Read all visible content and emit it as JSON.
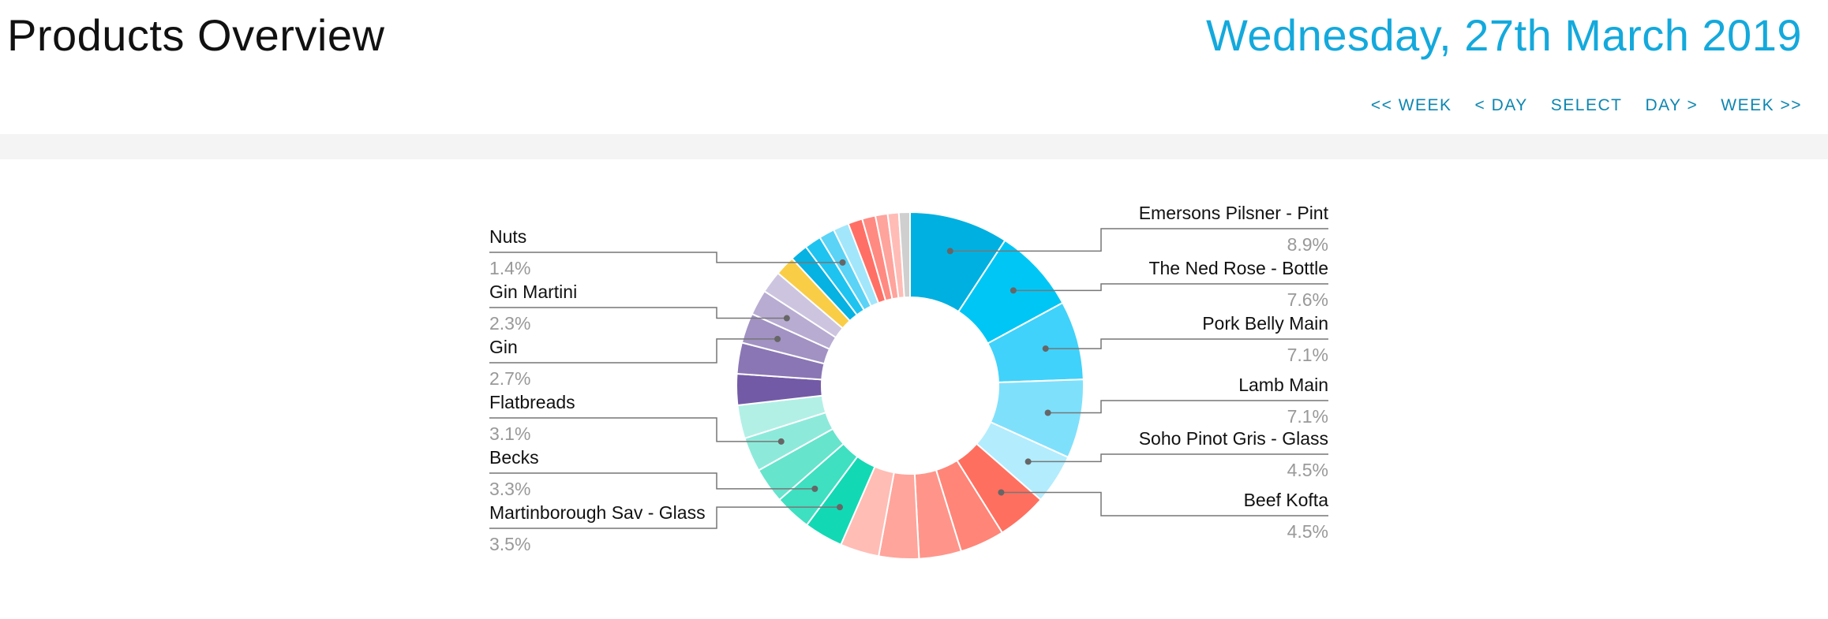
{
  "header": {
    "title": "Products Overview",
    "date": "Wednesday, 27th March 2019"
  },
  "nav": {
    "prev_week": "<< WEEK",
    "prev_day": "< DAY",
    "select": "SELECT",
    "next_day": "DAY >",
    "next_week": "WEEK >>"
  },
  "chart_data": {
    "type": "pie",
    "donut": true,
    "slices": [
      {
        "label": "Emersons Pilsner - Pint",
        "value": 8.9,
        "color": "#00b0e0",
        "labeled": true
      },
      {
        "label": "The Ned Rose - Bottle",
        "value": 7.6,
        "color": "#00c6f5",
        "labeled": true
      },
      {
        "label": "Pork Belly Main",
        "value": 7.1,
        "color": "#40d2fa",
        "labeled": true
      },
      {
        "label": "Lamb Main",
        "value": 7.1,
        "color": "#7fe0fc",
        "labeled": true
      },
      {
        "label": "Soho Pinot Gris - Glass",
        "value": 4.5,
        "color": "#b3ecfd",
        "labeled": true
      },
      {
        "label": "Beef Kofta",
        "value": 4.5,
        "color": "#ff6f5f",
        "labeled": true
      },
      {
        "label": "",
        "value": 4.0,
        "color": "#ff8578",
        "labeled": false
      },
      {
        "label": "",
        "value": 3.8,
        "color": "#ff958a",
        "labeled": false
      },
      {
        "label": "",
        "value": 3.6,
        "color": "#ffa59b",
        "labeled": false
      },
      {
        "label": "",
        "value": 3.5,
        "color": "#ffbdb5",
        "labeled": false
      },
      {
        "label": "Martinborough Sav - Glass",
        "value": 3.5,
        "color": "#13d8b4",
        "labeled": true
      },
      {
        "label": "Becks",
        "value": 3.3,
        "color": "#3ee0c1",
        "labeled": true
      },
      {
        "label": "",
        "value": 3.2,
        "color": "#66e4cc",
        "labeled": false
      },
      {
        "label": "Flatbreads",
        "value": 3.1,
        "color": "#8deadb",
        "labeled": true
      },
      {
        "label": "",
        "value": 3.0,
        "color": "#b2f0e6",
        "labeled": false
      },
      {
        "label": "",
        "value": 2.8,
        "color": "#735aa6",
        "labeled": false
      },
      {
        "label": "",
        "value": 2.8,
        "color": "#8a76b4",
        "labeled": false
      },
      {
        "label": "Gin",
        "value": 2.7,
        "color": "#a192c3",
        "labeled": true
      },
      {
        "label": "Gin Martini",
        "value": 2.3,
        "color": "#b8acd2",
        "labeled": true
      },
      {
        "label": "",
        "value": 2.0,
        "color": "#cdc5e0",
        "labeled": false
      },
      {
        "label": "",
        "value": 1.8,
        "color": "#f9cd46",
        "labeled": false
      },
      {
        "label": "",
        "value": 1.6,
        "color": "#05b2e2",
        "labeled": false
      },
      {
        "label": "",
        "value": 1.5,
        "color": "#1fc3f0",
        "labeled": false
      },
      {
        "label": "Nuts",
        "value": 1.4,
        "color": "#5ad3f6",
        "labeled": true
      },
      {
        "label": "",
        "value": 1.4,
        "color": "#a2e6fb",
        "labeled": false
      },
      {
        "label": "",
        "value": 1.3,
        "color": "#ff6f66",
        "labeled": false
      },
      {
        "label": "",
        "value": 1.2,
        "color": "#ff8a82",
        "labeled": false
      },
      {
        "label": "",
        "value": 1.1,
        "color": "#ffa39d",
        "labeled": false
      },
      {
        "label": "",
        "value": 1.0,
        "color": "#ffbcb6",
        "labeled": false
      },
      {
        "label": "",
        "value": 1.0,
        "color": "#cfcfcf",
        "labeled": false
      }
    ],
    "value_suffix": "%"
  }
}
